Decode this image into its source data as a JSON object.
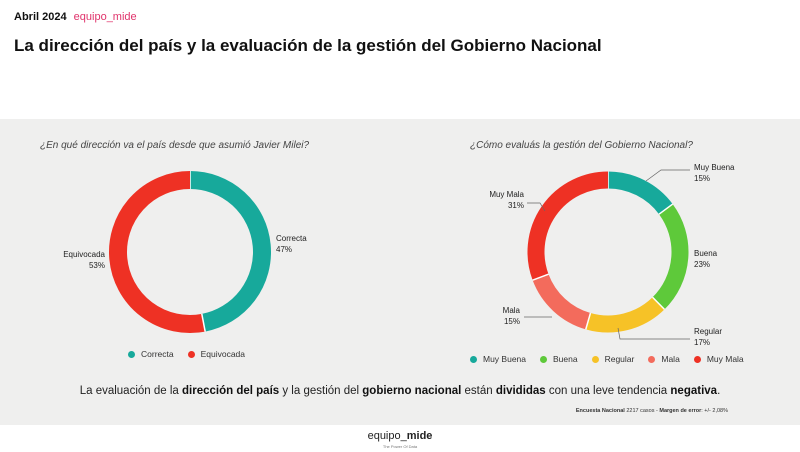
{
  "header": {
    "date": "Abril 2024",
    "brand": "equipo_mide"
  },
  "title": "La dirección del país y la evaluación de la gestión del Gobierno Nacional",
  "colors": {
    "correcta": "#17a99b",
    "equivocada": "#ee3124",
    "muy_buena": "#17a99b",
    "buena": "#5ec93a",
    "regular": "#f6c227",
    "mala": "#f36b5c",
    "muy_mala": "#ee3124"
  },
  "chart_data": [
    {
      "type": "pie",
      "title": "¿En qué dirección va el país desde que asumió Javier Milei?",
      "categories": [
        "Correcta",
        "Equivocada"
      ],
      "values": [
        47,
        53
      ],
      "value_labels": [
        "47%",
        "53%"
      ],
      "legend": [
        "Correcta",
        "Equivocada"
      ],
      "legend_position": "bottom"
    },
    {
      "type": "pie",
      "title": "¿Cómo evaluás la gestión del Gobierno Nacional?",
      "categories": [
        "Muy Buena",
        "Buena",
        "Regular",
        "Mala",
        "Muy Mala"
      ],
      "values": [
        15,
        23,
        17,
        15,
        31
      ],
      "value_labels": [
        "15%",
        "23%",
        "17%",
        "15%",
        "31%"
      ],
      "legend": [
        "Muy Buena",
        "Buena",
        "Regular",
        "Mala",
        "Muy Mala"
      ],
      "legend_position": "bottom"
    }
  ],
  "summary": {
    "p1": "La evaluación de la ",
    "b1": "dirección del país",
    "p2": " y la gestión del ",
    "b2": "gobierno nacional",
    "p3": " están ",
    "b3": "divididas",
    "p4": " con una leve tendencia ",
    "b4": "negativa",
    "p5": "."
  },
  "footnote": {
    "survey": "Encuesta Nacional",
    "cases": " 2217 casos - ",
    "margin_label": "Margen de error",
    "margin_value": ": +/- 2,08%"
  },
  "footer": {
    "brand_prefix": "equipo_",
    "brand_bold": "mide",
    "tagline": "The Power Of Data"
  }
}
